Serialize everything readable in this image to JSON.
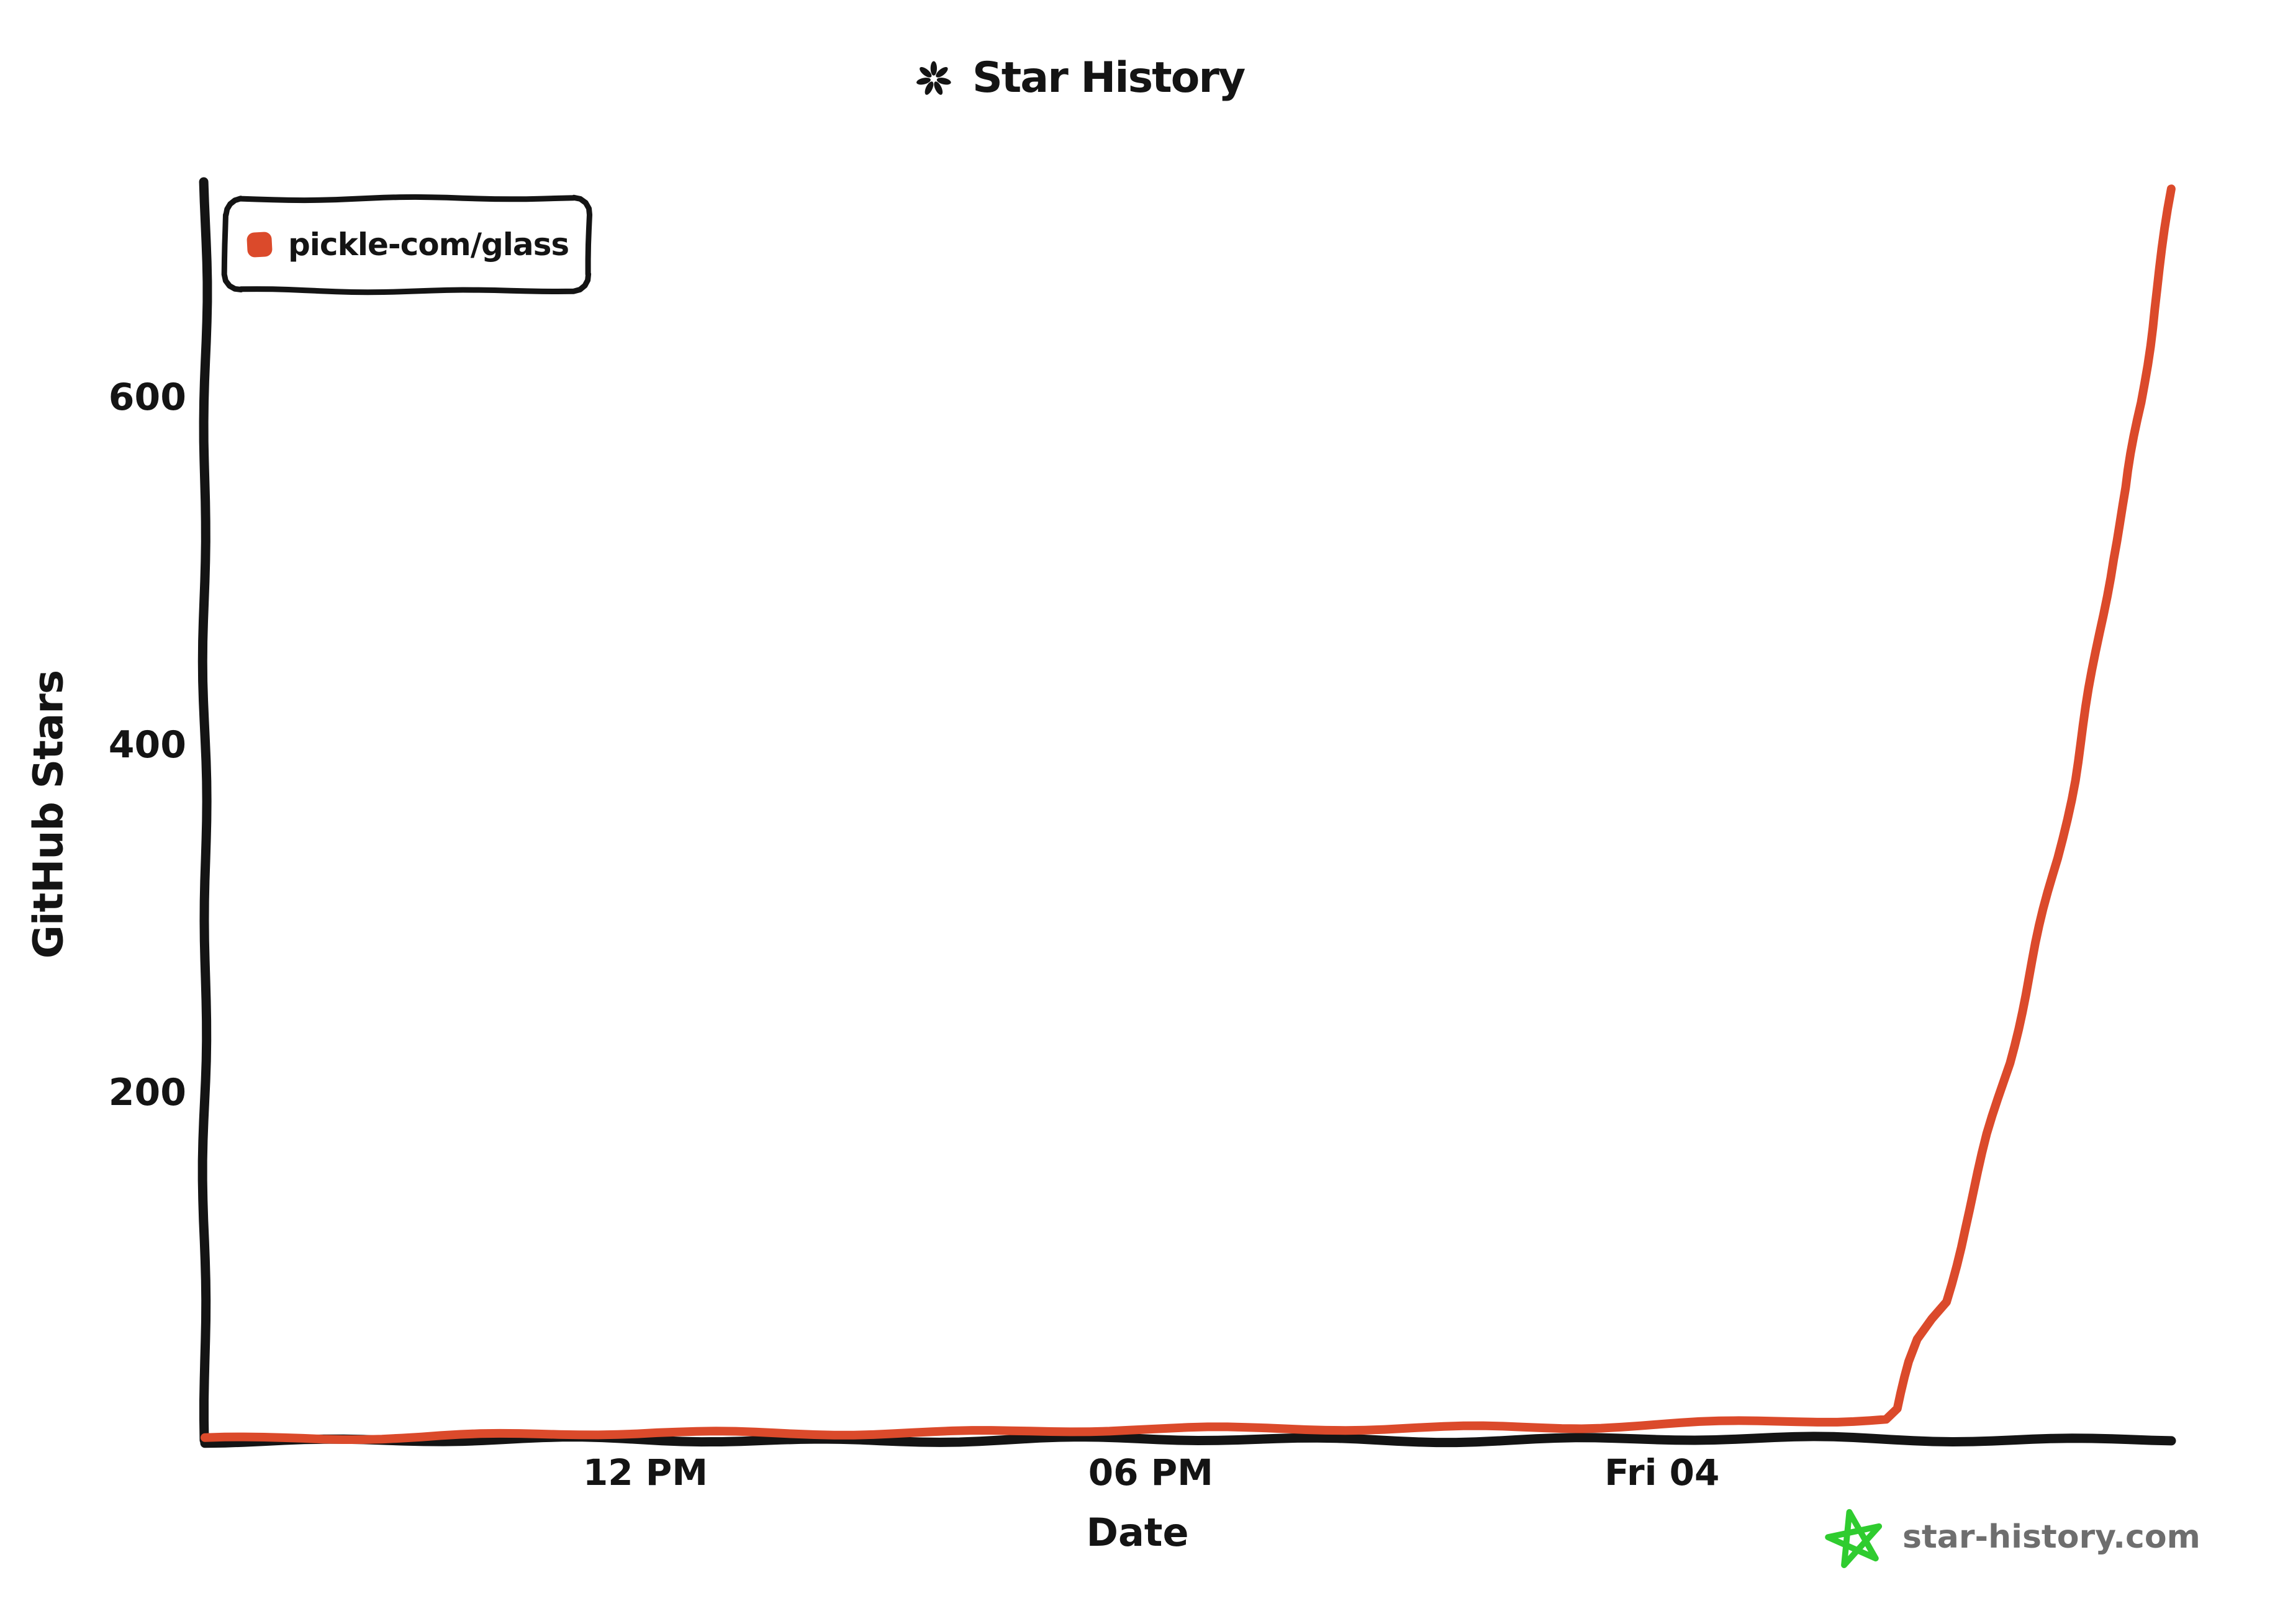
{
  "title": {
    "icon": "sparkle-flower",
    "text": "Star History"
  },
  "footer": {
    "icon": "hand-drawn-star",
    "text": "star-history.com",
    "icon_color": "#2FCC2F",
    "text_color": "#6E6E6E"
  },
  "colors": {
    "axis": "#141414",
    "text": "#141414",
    "series_1": "#DB4A2B"
  },
  "chart_data": {
    "type": "line",
    "title": "Star History",
    "xlabel": "Date",
    "ylabel": "GitHub Stars",
    "style": "hand-drawn-xkcd",
    "grid": false,
    "legend_position": "top-left",
    "ylim": [
      0,
      724
    ],
    "x_ticks": [
      {
        "t": 0.224,
        "label": "12 PM"
      },
      {
        "t": 0.481,
        "label": "06 PM"
      },
      {
        "t": 0.741,
        "label": "Fri 04"
      }
    ],
    "y_ticks": [
      {
        "value": 200,
        "label": "200"
      },
      {
        "value": 400,
        "label": "400"
      },
      {
        "value": 600,
        "label": "600"
      }
    ],
    "series": [
      {
        "name": "pickle-com/glass",
        "color": "#DB4A2B",
        "points": [
          [
            0.0,
            1
          ],
          [
            0.05,
            2
          ],
          [
            0.11,
            2
          ],
          [
            0.17,
            3
          ],
          [
            0.23,
            4
          ],
          [
            0.29,
            4
          ],
          [
            0.35,
            5
          ],
          [
            0.41,
            5
          ],
          [
            0.47,
            6
          ],
          [
            0.53,
            6
          ],
          [
            0.59,
            7
          ],
          [
            0.65,
            8
          ],
          [
            0.7,
            8
          ],
          [
            0.75,
            9
          ],
          [
            0.79,
            10
          ],
          [
            0.83,
            11
          ],
          [
            0.855,
            12
          ],
          [
            0.861,
            18
          ],
          [
            0.867,
            45
          ],
          [
            0.871,
            58
          ],
          [
            0.878,
            70
          ],
          [
            0.885,
            80
          ],
          [
            0.894,
            122
          ],
          [
            0.907,
            176
          ],
          [
            0.918,
            217
          ],
          [
            0.93,
            276
          ],
          [
            0.942,
            335
          ],
          [
            0.95,
            380
          ],
          [
            0.96,
            443
          ],
          [
            0.97,
            507
          ],
          [
            0.978,
            548
          ],
          [
            0.985,
            597
          ],
          [
            0.991,
            651
          ],
          [
            0.997,
            697
          ],
          [
            1.0,
            720
          ]
        ]
      }
    ]
  }
}
